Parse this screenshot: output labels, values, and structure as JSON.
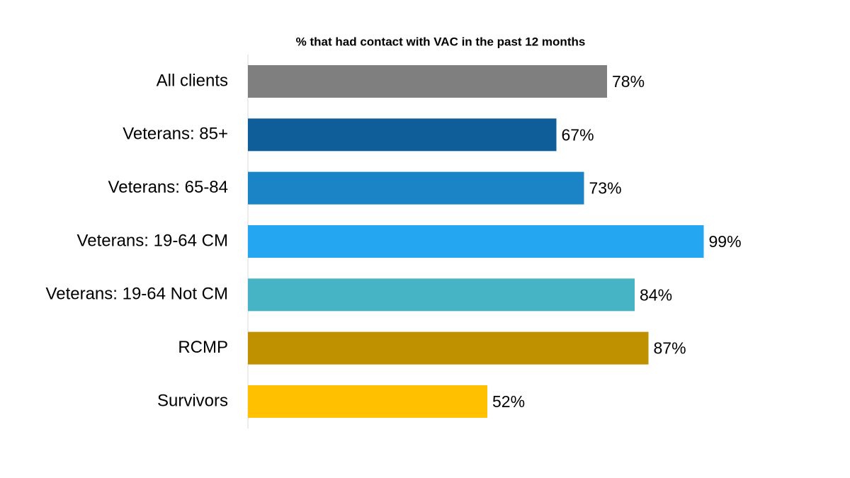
{
  "chart_data": {
    "type": "bar",
    "orientation": "horizontal",
    "title": "% that had contact with VAC in the past 12 months",
    "categories": [
      "All clients",
      "Veterans: 85+",
      "Veterans: 65-84",
      "Veterans: 19-64 CM",
      "Veterans: 19-64 Not CM",
      "RCMP",
      "Survivors"
    ],
    "values": [
      78,
      67,
      73,
      99,
      84,
      87,
      52
    ],
    "value_labels": [
      "78%",
      "67%",
      "73%",
      "99%",
      "84%",
      "87%",
      "52%"
    ],
    "colors": [
      "#7f7f7f",
      "#105e99",
      "#1b84c6",
      "#24a6f0",
      "#47b4c5",
      "#bf9000",
      "#ffc000"
    ]
  }
}
